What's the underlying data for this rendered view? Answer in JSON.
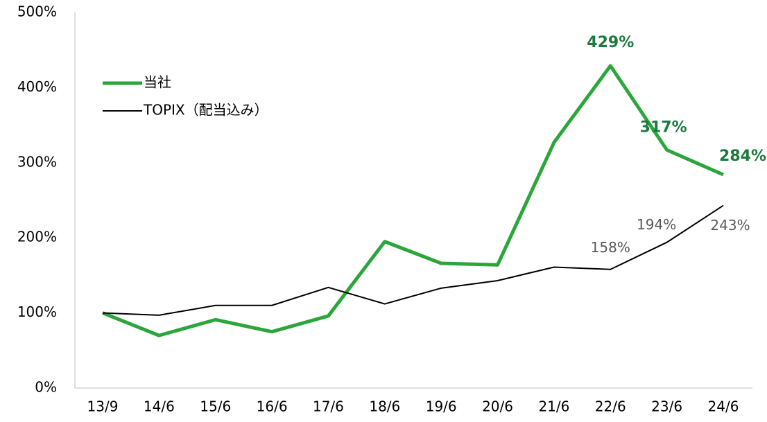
{
  "chart_data": {
    "type": "line",
    "categories": [
      "13/9",
      "14/6",
      "15/6",
      "16/6",
      "17/6",
      "18/6",
      "19/6",
      "20/6",
      "21/6",
      "22/6",
      "23/6",
      "24/6"
    ],
    "series": [
      {
        "name": "当社",
        "color": "#2aa63a",
        "values": [
          100,
          70,
          91,
          75,
          96,
          195,
          166,
          164,
          327,
          429,
          317,
          284
        ],
        "value_labels": [
          null,
          null,
          null,
          null,
          null,
          null,
          null,
          null,
          null,
          "429%",
          "317%",
          "284%"
        ]
      },
      {
        "name": "TOPIX（配当込み）",
        "color": "#000000",
        "values": [
          100,
          97,
          110,
          110,
          134,
          112,
          133,
          143,
          161,
          158,
          194,
          243
        ],
        "value_labels": [
          null,
          null,
          null,
          null,
          null,
          null,
          null,
          null,
          null,
          "158%",
          "194%",
          "243%"
        ]
      }
    ],
    "ylim": [
      0,
      500
    ],
    "yticks": [
      {
        "value": 0,
        "label": "0%"
      },
      {
        "value": 100,
        "label": "100%"
      },
      {
        "value": 200,
        "label": "200%"
      },
      {
        "value": 300,
        "label": "300%"
      },
      {
        "value": 400,
        "label": "400%"
      },
      {
        "value": 500,
        "label": "500%"
      }
    ],
    "grid": false,
    "legend": "upper left"
  }
}
